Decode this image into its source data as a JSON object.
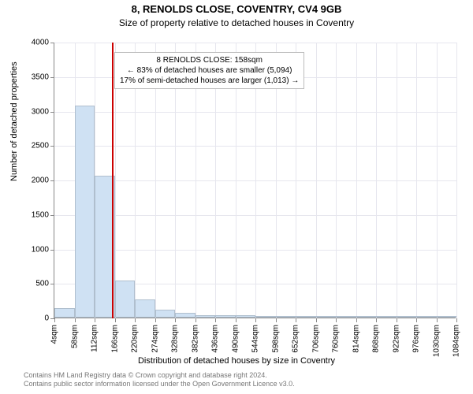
{
  "chart": {
    "type": "histogram",
    "title_line1": "8, RENOLDS CLOSE, COVENTRY, CV4 9GB",
    "title_line2": "Size of property relative to detached houses in Coventry",
    "y_axis_label": "Number of detached properties",
    "x_axis_label": "Distribution of detached houses by size in Coventry",
    "background_color": "#ffffff",
    "grid_color": "#e6e6ee",
    "axis_color": "#888888",
    "bar_fill": "#cfe1f3",
    "bar_stroke": "rgba(0,0,0,0.12)",
    "marker_color": "#cc0000",
    "title_fontsize": 13,
    "subtitle_fontsize": 12,
    "axis_label_fontsize": 11,
    "tick_fontsize": 10,
    "ylim": [
      0,
      4000
    ],
    "ytick_step": 500,
    "yticks": [
      0,
      500,
      1000,
      1500,
      2000,
      2500,
      3000,
      3500,
      4000
    ],
    "xticks": [
      "4sqm",
      "58sqm",
      "112sqm",
      "166sqm",
      "220sqm",
      "274sqm",
      "328sqm",
      "382sqm",
      "436sqm",
      "490sqm",
      "544sqm",
      "598sqm",
      "652sqm",
      "706sqm",
      "760sqm",
      "814sqm",
      "868sqm",
      "922sqm",
      "976sqm",
      "1030sqm",
      "1084sqm"
    ],
    "bin_width_sqm": 54,
    "bar_values": [
      140,
      3080,
      2060,
      540,
      260,
      120,
      70,
      40,
      40,
      30,
      15,
      10,
      8,
      6,
      3,
      3,
      3,
      2,
      2,
      2
    ],
    "marker_value_sqm": 158,
    "annotation": {
      "line1": "8 RENOLDS CLOSE: 158sqm",
      "line2": "← 83% of detached houses are smaller (5,094)",
      "line3": "17% of semi-detached houses are larger (1,013) →"
    },
    "attribution": {
      "line1": "Contains HM Land Registry data © Crown copyright and database right 2024.",
      "line2": "Contains public sector information licensed under the Open Government Licence v3.0."
    }
  }
}
